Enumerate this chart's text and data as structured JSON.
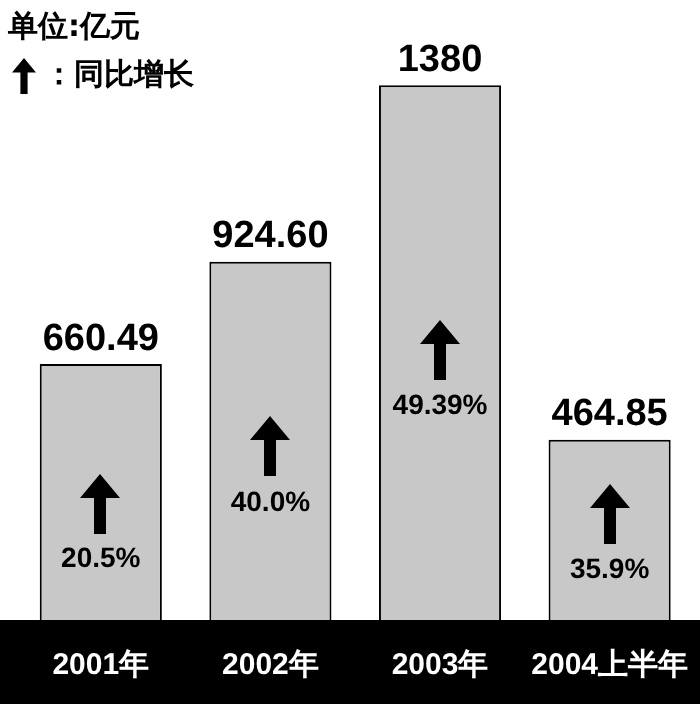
{
  "chart_data": {
    "type": "bar",
    "categories": [
      "2001年",
      "2002年",
      "2003年",
      "2004上半年"
    ],
    "values": [
      660.49,
      924.6,
      1380,
      464.85
    ],
    "value_labels": [
      "660.49",
      "924.60",
      "1380",
      "464.85"
    ],
    "color": "#c8c8c8",
    "relative": false,
    "annotations": [
      "单位:亿元",
      "：同比增长",
      "20.5%",
      "40.0%",
      "49.39%",
      "35.9%"
    ]
  }
}
